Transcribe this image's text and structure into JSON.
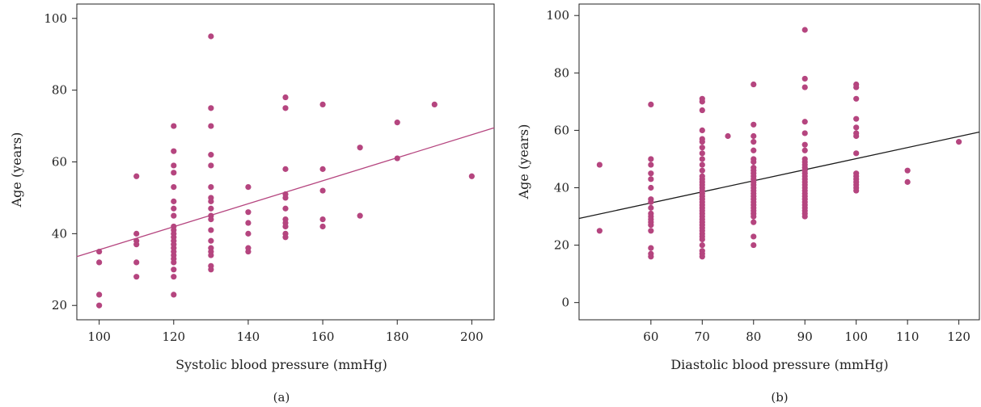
{
  "chart_data": [
    {
      "type": "scatter",
      "panel_label": "(a)",
      "xlabel": "Systolic blood pressure (mmHg)",
      "ylabel": "Age (years)",
      "xlim": [
        94,
        206
      ],
      "ylim": [
        16,
        104
      ],
      "xticks": [
        100,
        120,
        140,
        160,
        180,
        200
      ],
      "yticks": [
        20,
        40,
        60,
        80,
        100
      ],
      "grid": false,
      "colors": {
        "points": "#b5457f",
        "trend_line": "#b5457f"
      },
      "trend_line": {
        "x": [
          94,
          206
        ],
        "y": [
          33.6,
          69.5
        ]
      },
      "points": [
        [
          100,
          35
        ],
        [
          100,
          32
        ],
        [
          100,
          23
        ],
        [
          100,
          20
        ],
        [
          110,
          56
        ],
        [
          110,
          40
        ],
        [
          110,
          38
        ],
        [
          110,
          37
        ],
        [
          110,
          32
        ],
        [
          110,
          28
        ],
        [
          120,
          70
        ],
        [
          120,
          63
        ],
        [
          120,
          59
        ],
        [
          120,
          57
        ],
        [
          120,
          53
        ],
        [
          120,
          49
        ],
        [
          120,
          47
        ],
        [
          120,
          45
        ],
        [
          120,
          42
        ],
        [
          120,
          41
        ],
        [
          120,
          40
        ],
        [
          120,
          39
        ],
        [
          120,
          38
        ],
        [
          120,
          37
        ],
        [
          120,
          36
        ],
        [
          120,
          35
        ],
        [
          120,
          34
        ],
        [
          120,
          33
        ],
        [
          120,
          32
        ],
        [
          120,
          30
        ],
        [
          120,
          28
        ],
        [
          120,
          23
        ],
        [
          130,
          95
        ],
        [
          130,
          75
        ],
        [
          130,
          70
        ],
        [
          130,
          62
        ],
        [
          130,
          59
        ],
        [
          130,
          53
        ],
        [
          130,
          50
        ],
        [
          130,
          49
        ],
        [
          130,
          47
        ],
        [
          130,
          45
        ],
        [
          130,
          44
        ],
        [
          130,
          41
        ],
        [
          130,
          38
        ],
        [
          130,
          36
        ],
        [
          130,
          35
        ],
        [
          130,
          34
        ],
        [
          130,
          31
        ],
        [
          130,
          30
        ],
        [
          140,
          53
        ],
        [
          140,
          46
        ],
        [
          140,
          43
        ],
        [
          140,
          40
        ],
        [
          140,
          36
        ],
        [
          140,
          35
        ],
        [
          150,
          78
        ],
        [
          150,
          75
        ],
        [
          150,
          58
        ],
        [
          150,
          51
        ],
        [
          150,
          50
        ],
        [
          150,
          47
        ],
        [
          150,
          44
        ],
        [
          150,
          43
        ],
        [
          150,
          42
        ],
        [
          150,
          40
        ],
        [
          150,
          39
        ],
        [
          160,
          76
        ],
        [
          160,
          58
        ],
        [
          160,
          52
        ],
        [
          160,
          44
        ],
        [
          160,
          42
        ],
        [
          170,
          64
        ],
        [
          170,
          45
        ],
        [
          180,
          71
        ],
        [
          180,
          61
        ],
        [
          190,
          76
        ],
        [
          200,
          56
        ]
      ]
    },
    {
      "type": "scatter",
      "panel_label": "(b)",
      "xlabel": "Diastolic blood pressure (mmHg)",
      "ylabel": "Age (years)",
      "xlim": [
        46,
        124
      ],
      "ylim": [
        -6,
        104
      ],
      "xticks": [
        60,
        70,
        80,
        90,
        100,
        110,
        120
      ],
      "yticks": [
        0,
        20,
        40,
        60,
        80,
        100
      ],
      "grid": false,
      "colors": {
        "points": "#b5457f",
        "trend_line": "#1a1a1a"
      },
      "trend_line": {
        "x": [
          46,
          124
        ],
        "y": [
          29.3,
          59.4
        ]
      },
      "points": [
        [
          50,
          48
        ],
        [
          50,
          25
        ],
        [
          60,
          69
        ],
        [
          60,
          50
        ],
        [
          60,
          48
        ],
        [
          60,
          45
        ],
        [
          60,
          43
        ],
        [
          60,
          40
        ],
        [
          60,
          36
        ],
        [
          60,
          35
        ],
        [
          60,
          33
        ],
        [
          60,
          31
        ],
        [
          60,
          30
        ],
        [
          60,
          29
        ],
        [
          60,
          28
        ],
        [
          60,
          27
        ],
        [
          60,
          25
        ],
        [
          60,
          19
        ],
        [
          60,
          17
        ],
        [
          60,
          16
        ],
        [
          70,
          71
        ],
        [
          70,
          70
        ],
        [
          70,
          67
        ],
        [
          70,
          60
        ],
        [
          70,
          57
        ],
        [
          70,
          56
        ],
        [
          70,
          54
        ],
        [
          70,
          52
        ],
        [
          70,
          50
        ],
        [
          70,
          48
        ],
        [
          70,
          46
        ],
        [
          70,
          44
        ],
        [
          70,
          43
        ],
        [
          70,
          42
        ],
        [
          70,
          41
        ],
        [
          70,
          40
        ],
        [
          70,
          39
        ],
        [
          70,
          38
        ],
        [
          70,
          37
        ],
        [
          70,
          36
        ],
        [
          70,
          35
        ],
        [
          70,
          34
        ],
        [
          70,
          33
        ],
        [
          70,
          32
        ],
        [
          70,
          31
        ],
        [
          70,
          30
        ],
        [
          70,
          29
        ],
        [
          70,
          28
        ],
        [
          70,
          27
        ],
        [
          70,
          26
        ],
        [
          70,
          25
        ],
        [
          70,
          24
        ],
        [
          70,
          23
        ],
        [
          70,
          22
        ],
        [
          70,
          20
        ],
        [
          70,
          18
        ],
        [
          70,
          17
        ],
        [
          70,
          16
        ],
        [
          75,
          58
        ],
        [
          80,
          76
        ],
        [
          80,
          62
        ],
        [
          80,
          58
        ],
        [
          80,
          56
        ],
        [
          80,
          53
        ],
        [
          80,
          50
        ],
        [
          80,
          49
        ],
        [
          80,
          47
        ],
        [
          80,
          46
        ],
        [
          80,
          45
        ],
        [
          80,
          44
        ],
        [
          80,
          43
        ],
        [
          80,
          42
        ],
        [
          80,
          41
        ],
        [
          80,
          40
        ],
        [
          80,
          39
        ],
        [
          80,
          38
        ],
        [
          80,
          37
        ],
        [
          80,
          36
        ],
        [
          80,
          35
        ],
        [
          80,
          34
        ],
        [
          80,
          33
        ],
        [
          80,
          32
        ],
        [
          80,
          31
        ],
        [
          80,
          30
        ],
        [
          80,
          28
        ],
        [
          80,
          23
        ],
        [
          80,
          20
        ],
        [
          90,
          95
        ],
        [
          90,
          78
        ],
        [
          90,
          75
        ],
        [
          90,
          63
        ],
        [
          90,
          59
        ],
        [
          90,
          55
        ],
        [
          90,
          53
        ],
        [
          90,
          50
        ],
        [
          90,
          49
        ],
        [
          90,
          48
        ],
        [
          90,
          47
        ],
        [
          90,
          46
        ],
        [
          90,
          45
        ],
        [
          90,
          44
        ],
        [
          90,
          43
        ],
        [
          90,
          42
        ],
        [
          90,
          41
        ],
        [
          90,
          40
        ],
        [
          90,
          39
        ],
        [
          90,
          38
        ],
        [
          90,
          37
        ],
        [
          90,
          36
        ],
        [
          90,
          35
        ],
        [
          90,
          34
        ],
        [
          90,
          33
        ],
        [
          90,
          32
        ],
        [
          90,
          31
        ],
        [
          90,
          30
        ],
        [
          100,
          76
        ],
        [
          100,
          75
        ],
        [
          100,
          71
        ],
        [
          100,
          64
        ],
        [
          100,
          61
        ],
        [
          100,
          59
        ],
        [
          100,
          58
        ],
        [
          100,
          52
        ],
        [
          100,
          45
        ],
        [
          100,
          44
        ],
        [
          100,
          43
        ],
        [
          100,
          42
        ],
        [
          100,
          41
        ],
        [
          100,
          40
        ],
        [
          100,
          39
        ],
        [
          110,
          46
        ],
        [
          110,
          42
        ],
        [
          120,
          56
        ]
      ]
    }
  ]
}
